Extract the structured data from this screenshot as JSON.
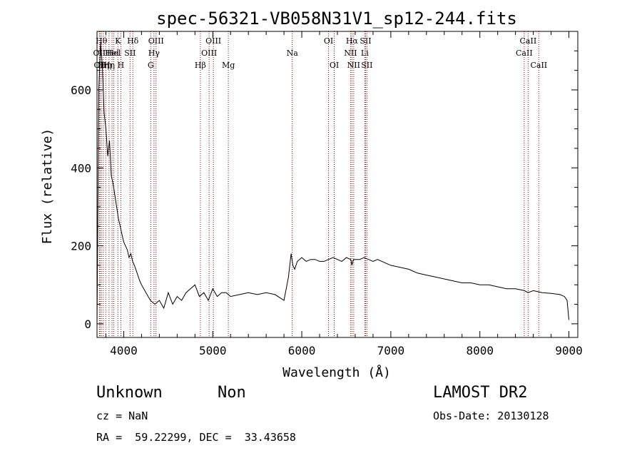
{
  "chart_data": {
    "type": "line",
    "title": "spec-56321-VB058N31V1_sp12-244.fits",
    "xlabel": "Wavelength (Å)",
    "ylabel": "Flux (relative)",
    "xlim": [
      3700,
      9100
    ],
    "ylim": [
      -35,
      750
    ],
    "x_ticks": [
      4000,
      5000,
      6000,
      7000,
      8000,
      9000
    ],
    "y_ticks": [
      0,
      200,
      400,
      600
    ],
    "grid": false,
    "series": [
      {
        "x": [
          3700,
          3720,
          3740,
          3760,
          3780,
          3800,
          3820,
          3840,
          3860,
          3880,
          3900,
          3920,
          3940,
          3960,
          3980,
          4000,
          4020,
          4040,
          4060,
          4080,
          4100,
          4120,
          4150,
          4180,
          4200,
          4250,
          4300,
          4350,
          4400,
          4450,
          4500,
          4550,
          4600,
          4650,
          4700,
          4750,
          4800,
          4850,
          4900,
          4950,
          5000,
          5050,
          5100,
          5150,
          5200,
          5300,
          5400,
          5500,
          5600,
          5700,
          5800,
          5850,
          5880,
          5900,
          5920,
          5950,
          6000,
          6050,
          6100,
          6150,
          6200,
          6250,
          6300,
          6350,
          6400,
          6450,
          6500,
          6550,
          6563,
          6580,
          6600,
          6650,
          6700,
          6750,
          6800,
          6850,
          6900,
          6950,
          7000,
          7100,
          7200,
          7300,
          7400,
          7500,
          7600,
          7700,
          7800,
          7900,
          8000,
          8100,
          8200,
          8300,
          8400,
          8500,
          8542,
          8600,
          8662,
          8700,
          8800,
          8900,
          8950,
          8980,
          9000
        ],
        "y": [
          0,
          600,
          720,
          660,
          540,
          500,
          430,
          470,
          380,
          360,
          330,
          300,
          270,
          250,
          230,
          210,
          200,
          190,
          170,
          180,
          160,
          150,
          130,
          110,
          100,
          80,
          60,
          50,
          60,
          40,
          80,
          50,
          70,
          60,
          80,
          90,
          100,
          70,
          80,
          60,
          90,
          70,
          80,
          80,
          70,
          75,
          80,
          75,
          80,
          75,
          60,
          120,
          180,
          150,
          140,
          160,
          170,
          160,
          165,
          165,
          160,
          160,
          165,
          170,
          165,
          160,
          170,
          165,
          150,
          165,
          165,
          165,
          170,
          165,
          160,
          165,
          160,
          155,
          150,
          145,
          140,
          130,
          125,
          120,
          115,
          110,
          105,
          105,
          100,
          100,
          95,
          90,
          90,
          85,
          80,
          85,
          82,
          80,
          78,
          75,
          70,
          60,
          10
        ]
      }
    ],
    "lines": [
      {
        "x": 3727,
        "label": "OII",
        "row": 2
      },
      {
        "x": 3735,
        "label": "OII",
        "row": 3
      },
      {
        "x": 3750,
        "label": "Hθ",
        "row": 1
      },
      {
        "x": 3771,
        "label": "Hη",
        "row": 3
      },
      {
        "x": 3798,
        "label": "Hη",
        "row": 3
      },
      {
        "x": 3835,
        "label": "Hη",
        "row": 3
      },
      {
        "x": 3869,
        "label": "Hel",
        "row": 2
      },
      {
        "x": 3889,
        "label": "Hel",
        "row": 2
      },
      {
        "x": 3934,
        "label": "K",
        "row": 1
      },
      {
        "x": 3968,
        "label": "H",
        "row": 3
      },
      {
        "x": 4071,
        "label": "SII",
        "row": 2
      },
      {
        "x": 4102,
        "label": "Hδ",
        "row": 1
      },
      {
        "x": 4304,
        "label": "G",
        "row": 3
      },
      {
        "x": 4340,
        "label": "Hγ",
        "row": 2
      },
      {
        "x": 4363,
        "label": "OIII",
        "row": 1
      },
      {
        "x": 4861,
        "label": "Hβ",
        "row": 3
      },
      {
        "x": 4959,
        "label": "OIII",
        "row": 2
      },
      {
        "x": 5007,
        "label": "OIII",
        "row": 1
      },
      {
        "x": 5175,
        "label": "Mg",
        "row": 3
      },
      {
        "x": 5893,
        "label": "Na",
        "row": 2
      },
      {
        "x": 6300,
        "label": "OI",
        "row": 1
      },
      {
        "x": 6364,
        "label": "OI",
        "row": 3
      },
      {
        "x": 6548,
        "label": "NII",
        "row": 2
      },
      {
        "x": 6563,
        "label": "Hα",
        "row": 1
      },
      {
        "x": 6583,
        "label": "NII",
        "row": 3
      },
      {
        "x": 6707,
        "label": "Li",
        "row": 2
      },
      {
        "x": 6716,
        "label": "SII",
        "row": 1
      },
      {
        "x": 6731,
        "label": "SII",
        "row": 3
      },
      {
        "x": 8498,
        "label": "CaII",
        "row": 2
      },
      {
        "x": 8542,
        "label": "CaII",
        "row": 1
      },
      {
        "x": 8662,
        "label": "CaII",
        "row": 3
      }
    ],
    "line_color": "#8b0000"
  },
  "footer": {
    "class_label": "Unknown",
    "subclass_label": "Non",
    "survey": "LAMOST DR2",
    "cz": "cz = NaN",
    "obs_date": "Obs-Date: 20130128",
    "coords": "RA =  59.22299, DEC =  33.43658"
  }
}
